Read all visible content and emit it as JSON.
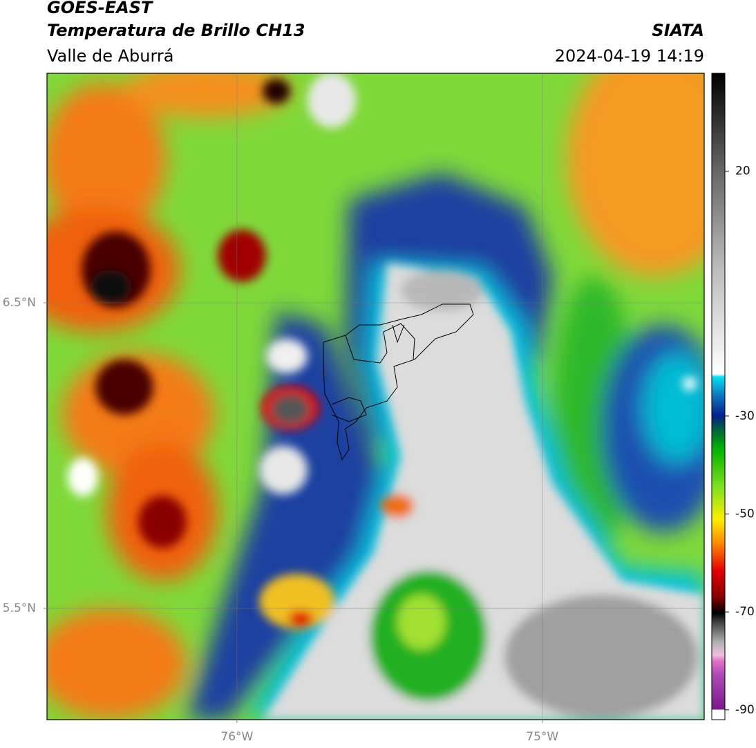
{
  "header": {
    "title": "GOES-EAST",
    "subtitle": "Temperatura de Brillo CH13",
    "region": "Valle de Aburrá",
    "source": "SIATA",
    "datetime": "2024-04-19 14:19"
  },
  "map": {
    "xlim": [
      -76.622,
      -74.47
    ],
    "ylim": [
      5.136,
      7.251
    ],
    "xticks": [
      {
        "value": -76,
        "label": "76°W"
      },
      {
        "value": -75,
        "label": "75°W"
      }
    ],
    "yticks": [
      {
        "value": 6.5,
        "label": "6.5°N"
      },
      {
        "value": 5.5,
        "label": "5.5°N"
      }
    ],
    "grid": true
  },
  "colorbar": {
    "lim": [
      -92,
      40
    ],
    "ticks": [
      20,
      -30,
      -50,
      -70,
      -90
    ]
  }
}
